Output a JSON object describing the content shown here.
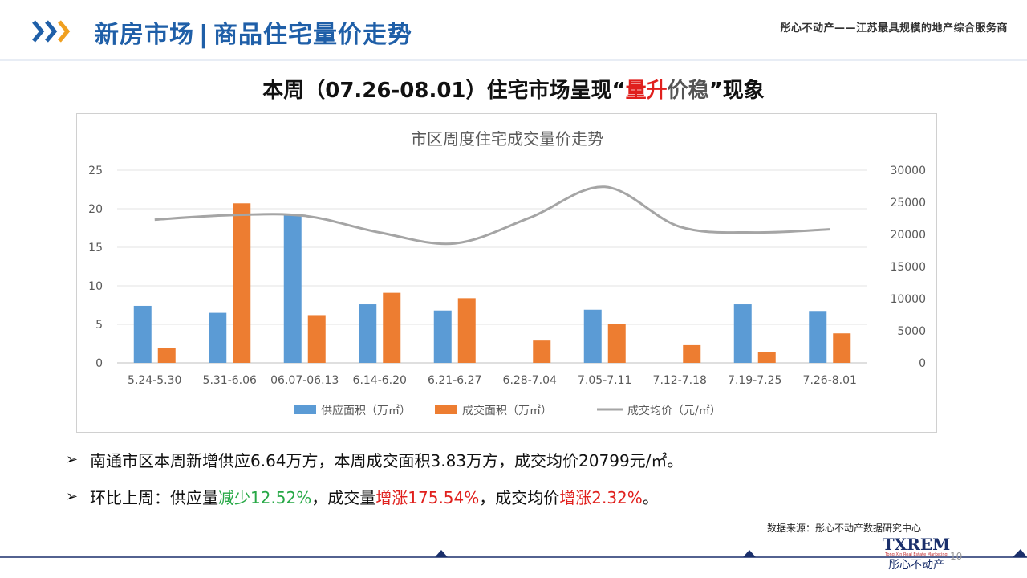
{
  "header": {
    "section": "新房市场",
    "separator": "|",
    "topic": "商品住宅量价走势",
    "tagline": "彤心不动产——江苏最具规模的地产综合服务商"
  },
  "headline": {
    "prefix": "本周（07.26-08.01）住宅市场呈现“",
    "red": "量升",
    "gray": "价稳",
    "suffix": "”现象"
  },
  "chart_data": {
    "type": "bar",
    "title": "市区周度住宅成交量价走势",
    "categories": [
      "5.24-5.30",
      "5.31-6.06",
      "06.07-06.13",
      "6.14-6.20",
      "6.21-6.27",
      "6.28-7.04",
      "7.05-7.11",
      "7.12-7.18",
      "7.19-7.25",
      "7.26-8.01"
    ],
    "series": [
      {
        "name": "供应面积（万㎡）",
        "type": "bar",
        "axis": "left",
        "color": "#5b9bd5",
        "values": [
          7.4,
          6.5,
          19.3,
          7.6,
          6.8,
          0,
          6.9,
          0,
          7.6,
          6.64
        ]
      },
      {
        "name": "成交面积（万㎡）",
        "type": "bar",
        "axis": "left",
        "color": "#ed7d31",
        "values": [
          1.9,
          20.7,
          6.1,
          9.1,
          8.4,
          2.9,
          5.0,
          2.3,
          1.4,
          3.83
        ]
      },
      {
        "name": "成交均价（元/㎡）",
        "type": "line",
        "axis": "right",
        "color": "#a5a5a5",
        "values": [
          22300,
          23000,
          22900,
          20300,
          18600,
          22600,
          27400,
          21200,
          20300,
          20799
        ]
      }
    ],
    "ylim_left": [
      0,
      25
    ],
    "yticks_left": [
      "0",
      "5",
      "10",
      "15",
      "20",
      "25"
    ],
    "ylim_right": [
      0,
      30000
    ],
    "yticks_right": [
      "0",
      "5000",
      "10000",
      "15000",
      "20000",
      "25000",
      "30000"
    ],
    "legend_position": "bottom",
    "grid": true
  },
  "bullets": [
    {
      "parts": [
        {
          "text": "南通市区本周新增供应6.64万方，本周成交面积3.83万方，成交均价20799元/㎡。",
          "color": "normal"
        }
      ]
    },
    {
      "parts": [
        {
          "text": "环比上周：供应量",
          "color": "normal"
        },
        {
          "text": "减少12.52%",
          "color": "green"
        },
        {
          "text": "，成交量",
          "color": "normal"
        },
        {
          "text": "增涨175.54%",
          "color": "red"
        },
        {
          "text": "，成交均价",
          "color": "normal"
        },
        {
          "text": "增涨2.32%",
          "color": "red"
        },
        {
          "text": "。",
          "color": "normal"
        }
      ]
    }
  ],
  "source": "数据来源：彤心不动产数据研究中心",
  "logo": {
    "brand": "TXREM",
    "tagline": "Tong Xin Real Estate Marketing",
    "name": "彤心不动产"
  },
  "page_number": "10",
  "colors": {
    "brand_blue": "#1f5fa8",
    "accent_orange": "#f0a020",
    "red": "#e0201d",
    "green": "#27a846"
  }
}
